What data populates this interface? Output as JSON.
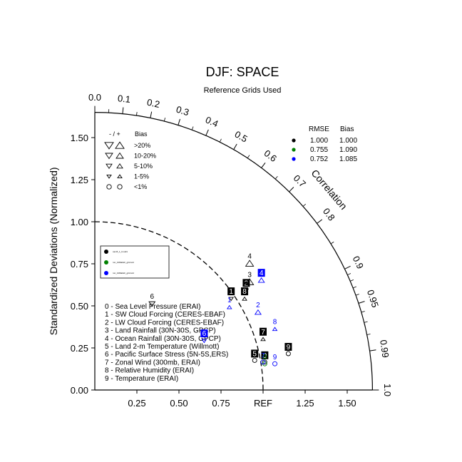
{
  "title": "DJF: SPACE",
  "subtitle": "Reference Grids Used",
  "chart_data": {
    "type": "scatter",
    "chart_kind": "taylor-diagram",
    "ylabel": "Standardized Deviations (Normalized)",
    "arc_label": "Correlation",
    "ref_label": "REF",
    "std_ticks_y": [
      "0.00",
      "0.25",
      "0.50",
      "0.75",
      "1.00",
      "1.25",
      "1.50"
    ],
    "std_ticks_x": [
      "0.25",
      "0.50",
      "0.75",
      "REF",
      "1.25",
      "1.50"
    ],
    "correlation_ticks": [
      "0.0",
      "0.1",
      "0.2",
      "0.3",
      "0.4",
      "0.5",
      "0.6",
      "0.7",
      "0.8",
      "0.9",
      "0.95",
      "0.99",
      "1.0"
    ],
    "std_range": [
      0,
      1.65
    ],
    "reference_std": 1.0,
    "bias_legend": {
      "header_sign": "- / +",
      "header_bias": "Bias",
      "rows": [
        ">20%",
        "10-20%",
        "5-10%",
        "1-5%",
        "<1%"
      ]
    },
    "rmse_table": {
      "header_rmse": "RMSE",
      "header_bias": "Bias",
      "rows": [
        {
          "color": "#000000",
          "rmse": "1.000",
          "bias": "1.000"
        },
        {
          "color": "#008000",
          "rmse": "0.755",
          "bias": "1.090"
        },
        {
          "color": "#0000ff",
          "rmse": "0.752",
          "bias": "1.085"
        }
      ]
    },
    "case_legend": [
      {
        "color": "#000000",
        "label": "cam5_1_fv.std1"
      },
      {
        "color": "#008000",
        "label": "run_fv09alt2c_grid.std"
      },
      {
        "color": "#0000ff",
        "label": "run_fv09alt2c_grid.std"
      }
    ],
    "variables": [
      "0 - Sea Level Pressure (ERAI)",
      "1 - SW Cloud Forcing (CERES-EBAF)",
      "2 - LW Cloud Forcing (CERES-EBAF)",
      "3 - Land Rainfall (30N-30S, GPCP)",
      "4 - Ocean Rainfall (30N-30S, GPCP)",
      "5 - Land 2-m Temperature (Willmott)",
      "6 - Pacific Surface Stress (5N-5S,ERS)",
      "7 - Zonal Wind (300mb, ERAI)",
      "8 - Relative Humidity (ERAI)",
      "9 - Temperature (ERAI)"
    ],
    "series": [
      {
        "case": 0,
        "color": "#000000",
        "points": [
          {
            "id": "0",
            "x": 1.01,
            "y": 0.2,
            "marker": "circle-open"
          },
          {
            "id": "1",
            "x": 0.81,
            "y": 0.58,
            "marker": "tri-down-small"
          },
          {
            "id": "2",
            "x": 0.9,
            "y": 0.63,
            "marker": "tri-down-small"
          },
          {
            "id": "3",
            "x": 0.92,
            "y": 0.68,
            "marker": "tri-up-large"
          },
          {
            "id": "4",
            "x": 0.92,
            "y": 0.79,
            "marker": "tri-up-large"
          },
          {
            "id": "5",
            "x": 0.95,
            "y": 0.21,
            "marker": "circle-open"
          },
          {
            "id": "6",
            "x": 0.34,
            "y": 0.55,
            "marker": "tri-down-medium"
          },
          {
            "id": "7",
            "x": 1.0,
            "y": 0.34,
            "marker": "tri-up-small"
          },
          {
            "id": "8",
            "x": 0.89,
            "y": 0.58,
            "marker": "tri-up-small"
          },
          {
            "id": "9",
            "x": 1.15,
            "y": 0.25,
            "marker": "circle-open"
          }
        ]
      },
      {
        "case": 1,
        "color": "#008000",
        "points": [
          {
            "id": "0",
            "x": 1.01,
            "y": 0.19,
            "marker": "circle-open"
          },
          {
            "id": "7",
            "x": 1.0,
            "y": 0.2,
            "marker": "circle-open"
          }
        ]
      },
      {
        "case": 2,
        "color": "#0000ff",
        "points": [
          {
            "id": "1",
            "x": 0.8,
            "y": 0.53,
            "marker": "tri-up-small"
          },
          {
            "id": "2",
            "x": 0.97,
            "y": 0.5,
            "marker": "tri-up-medium"
          },
          {
            "id": "4",
            "x": 0.99,
            "y": 0.69,
            "marker": "tri-up-medium"
          },
          {
            "id": "6",
            "x": 0.65,
            "y": 0.33,
            "marker": "tri-down-small"
          },
          {
            "id": "7",
            "x": 1.0,
            "y": 0.2,
            "marker": "circle-open"
          },
          {
            "id": "8",
            "x": 1.07,
            "y": 0.4,
            "marker": "tri-up-small"
          },
          {
            "id": "9",
            "x": 1.07,
            "y": 0.19,
            "marker": "circle-open"
          }
        ]
      }
    ]
  }
}
